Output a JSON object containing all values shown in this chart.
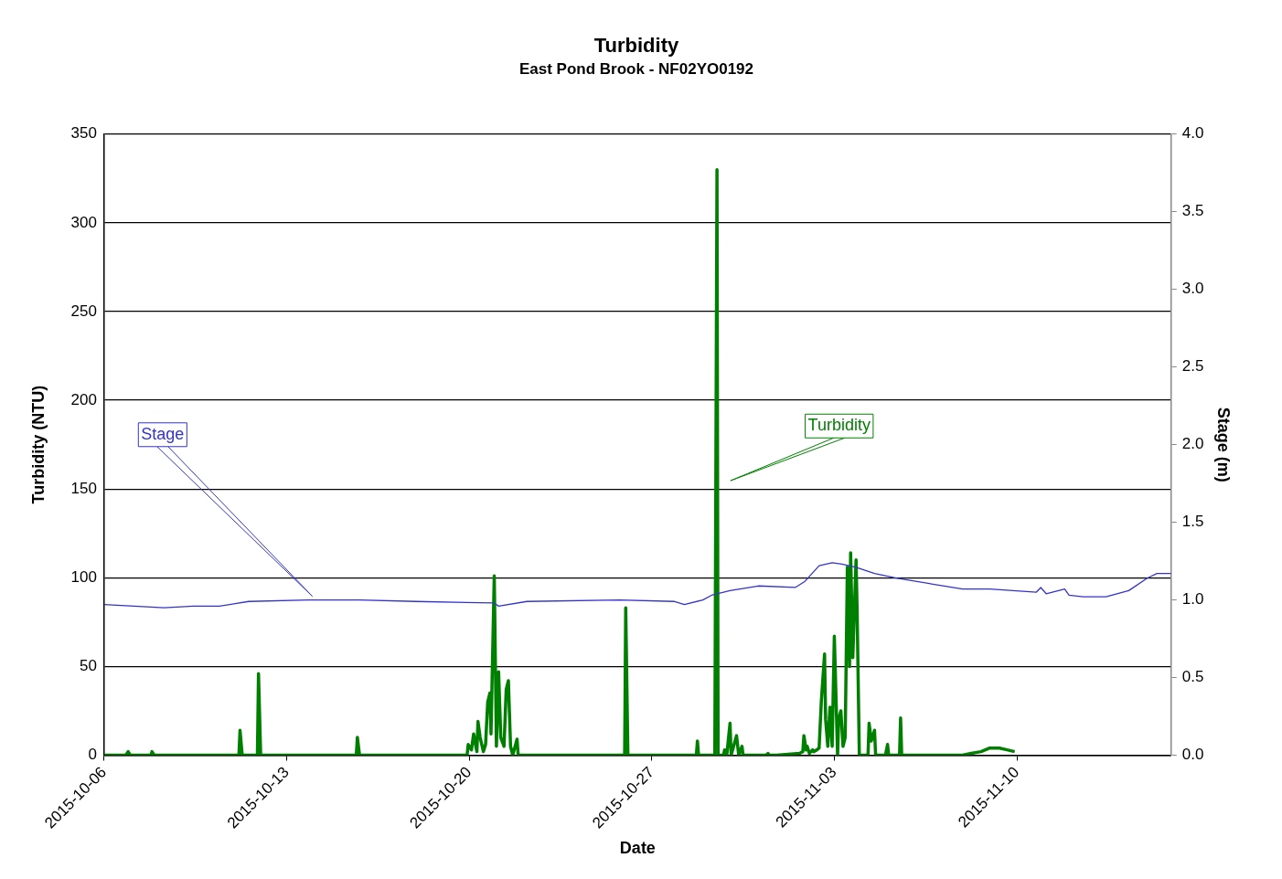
{
  "chart_data": {
    "type": "line",
    "title": "Turbidity",
    "subtitle": "East Pond Brook - NF02YO0192",
    "xlabel": "Date",
    "ylabel": "Turbidity (NTU)",
    "y2label": "Stage (m)",
    "xlim": [
      "2015-10-06",
      "2015-11-15T22:00"
    ],
    "xticks": [
      "2015-10-06",
      "2015-10-13",
      "2015-10-20",
      "2015-10-27",
      "2015-11-03",
      "2015-11-10"
    ],
    "ylim": [
      0,
      350
    ],
    "yticks": [
      0,
      50,
      100,
      150,
      200,
      250,
      300,
      350
    ],
    "y2lim": [
      0,
      4
    ],
    "y2ticks": [
      {
        "value": 0,
        "label": "0.0"
      },
      {
        "value": 0.5,
        "label": "0.5"
      },
      {
        "value": 1,
        "label": "1.0"
      },
      {
        "value": 1.5,
        "label": "1.5"
      },
      {
        "value": 2,
        "label": "2.0"
      },
      {
        "value": 2.5,
        "label": "2.5"
      },
      {
        "value": 3,
        "label": "3.0"
      },
      {
        "value": 3.5,
        "label": "3.5"
      },
      {
        "value": 4,
        "label": "4.0"
      }
    ],
    "grid": "y",
    "legend": false,
    "marker": "none",
    "series": [
      {
        "name": "Stage",
        "color": "#3333cc",
        "axis": "y2",
        "x": [
          "2015-10-06",
          "2015-10-08T07:00",
          "2015-10-09T10:00",
          "2015-10-10T10:00",
          "2015-10-11T13:00",
          "2015-10-13T20:00",
          "2015-10-15T19:00",
          "2015-10-17T23:00",
          "2015-10-20T23:00",
          "2015-10-21T03:00",
          "2015-10-22T05:00",
          "2015-10-25T18:00",
          "2015-10-27T21:00",
          "2015-10-28T06:00",
          "2015-10-28T23:00",
          "2015-10-29T07:00",
          "2015-10-30T00:00",
          "2015-10-31T02:00",
          "2015-11-01T12:00",
          "2015-11-01T21:00",
          "2015-11-02T10:00",
          "2015-11-02T22:00",
          "2015-11-03T07:00",
          "2015-11-03T20:00",
          "2015-11-04T13:00",
          "2015-11-05T10:00",
          "2015-11-06T20:00",
          "2015-11-07T22:00",
          "2015-11-08T23:00",
          "2015-11-10T18:00",
          "2015-11-10T22:00",
          "2015-11-11T03:00",
          "2015-11-11T20:00",
          "2015-11-12T00:00",
          "2015-11-12T13:00",
          "2015-11-13T10:00",
          "2015-11-14T07:00",
          "2015-11-15T00:00",
          "2015-11-15T09:00",
          "2015-11-15T22:00"
        ],
        "values": [
          0.97,
          0.95,
          0.96,
          0.96,
          0.99,
          1.0,
          1.0,
          0.99,
          0.98,
          0.96,
          0.99,
          1.0,
          0.99,
          0.97,
          1.0,
          1.03,
          1.06,
          1.09,
          1.08,
          1.12,
          1.22,
          1.24,
          1.23,
          1.21,
          1.17,
          1.14,
          1.1,
          1.07,
          1.07,
          1.05,
          1.08,
          1.04,
          1.07,
          1.03,
          1.02,
          1.02,
          1.06,
          1.14,
          1.17,
          1.17
        ]
      },
      {
        "name": "Turbidity",
        "color": "#008000",
        "axis": "y",
        "x": [
          "2015-10-06",
          "2015-10-06T20:00",
          "2015-10-06T22:00",
          "2015-10-07T00:00",
          "2015-10-07T19:00",
          "2015-10-07T20:00",
          "2015-10-07T22:00",
          "2015-10-11T04:00",
          "2015-10-11T05:00",
          "2015-10-11T07:00",
          "2015-10-11T21:00",
          "2015-10-11T22:00",
          "2015-10-12T00:00",
          "2015-10-15T16:00",
          "2015-10-15T17:00",
          "2015-10-15T19:00",
          "2015-10-19T22:00",
          "2015-10-19T23:00",
          "2015-10-20T02:00",
          "2015-10-20T04:00",
          "2015-10-20T07:00",
          "2015-10-20T08:00",
          "2015-10-20T10:00",
          "2015-10-20T13:00",
          "2015-10-20T15:00",
          "2015-10-20T17:00",
          "2015-10-20T19:00",
          "2015-10-20T20:00",
          "2015-10-20T23:00",
          "2015-10-21T01:00",
          "2015-10-21T03:00",
          "2015-10-21T05:00",
          "2015-10-21T08:00",
          "2015-10-21T10:00",
          "2015-10-21T12:00",
          "2015-10-21T14:00",
          "2015-10-21T16:00",
          "2015-10-21T20:00",
          "2015-10-21T21:00",
          "2015-10-25T23:00",
          "2015-10-26T00:00",
          "2015-10-26T02:00",
          "2015-10-28T17:00",
          "2015-10-28T18:00",
          "2015-10-28T19:00",
          "2015-10-29T10:00",
          "2015-10-29T12:00",
          "2015-10-29T13:00",
          "2015-10-29T18:00",
          "2015-10-29T19:00",
          "2015-10-29T21:00",
          "2015-10-30T00:00",
          "2015-10-30T01:00",
          "2015-10-30T06:00",
          "2015-10-30T08:00",
          "2015-10-30T11:00",
          "2015-10-30T12:00",
          "2015-10-31T09:00",
          "2015-10-31T11:00",
          "2015-10-31T12:00",
          "2015-10-31T19:00",
          "2015-11-01T16:00",
          "2015-11-01T19:00",
          "2015-11-01T20:00",
          "2015-11-01T22:00",
          "2015-11-01T23:00",
          "2015-11-02T01:00",
          "2015-11-02T04:00",
          "2015-11-02T05:00",
          "2015-11-02T08:00",
          "2015-11-02T10:00",
          "2015-11-02T12:00",
          "2015-11-02T15:00",
          "2015-11-02T16:00",
          "2015-11-02T18:00",
          "2015-11-02T20:00",
          "2015-11-02T22:00",
          "2015-11-03T00:00",
          "2015-11-03T03:00",
          "2015-11-03T04:00",
          "2015-11-03T06:00",
          "2015-11-03T08:00",
          "2015-11-03T10:00",
          "2015-11-03T12:00",
          "2015-11-03T14:00",
          "2015-11-03T15:00",
          "2015-11-03T17:00",
          "2015-11-03T20:00",
          "2015-11-03T21:00",
          "2015-11-03T23:00",
          "2015-11-04T07:00",
          "2015-11-04T08:00",
          "2015-11-04T10:00",
          "2015-11-04T13:00",
          "2015-11-04T14:00",
          "2015-11-04T23:00",
          "2015-11-05T01:00",
          "2015-11-05T02:00",
          "2015-11-05T12:00",
          "2015-11-05T13:00",
          "2015-11-05T14:00",
          "2015-11-07T22:00",
          "2015-11-08T06:00",
          "2015-11-08T15:00",
          "2015-11-08T23:00",
          "2015-11-09T08:00",
          "2015-11-09T15:00",
          "2015-11-09T22:00"
        ],
        "values": [
          0,
          0,
          2,
          0,
          0,
          2,
          0,
          0,
          14,
          0,
          0,
          46,
          0,
          0,
          10,
          0,
          0,
          6,
          3,
          12,
          2,
          19,
          10,
          2,
          6,
          30,
          35,
          12,
          101,
          5,
          47,
          10,
          5,
          37,
          42,
          5,
          0,
          9,
          0,
          0,
          83,
          0,
          0,
          8,
          0,
          0,
          330,
          0,
          0,
          3,
          0,
          18,
          0,
          11,
          0,
          5,
          0,
          0,
          1,
          0,
          0,
          1,
          2,
          11,
          3,
          5,
          1,
          3,
          2,
          3,
          4,
          30,
          57,
          20,
          5,
          27,
          5,
          67,
          0,
          20,
          25,
          5,
          10,
          106,
          50,
          114,
          55,
          110,
          80,
          0,
          0,
          18,
          8,
          14,
          0,
          0,
          6,
          0,
          0,
          21,
          0,
          0,
          1,
          2,
          4,
          4,
          3,
          2
        ]
      }
    ]
  }
}
